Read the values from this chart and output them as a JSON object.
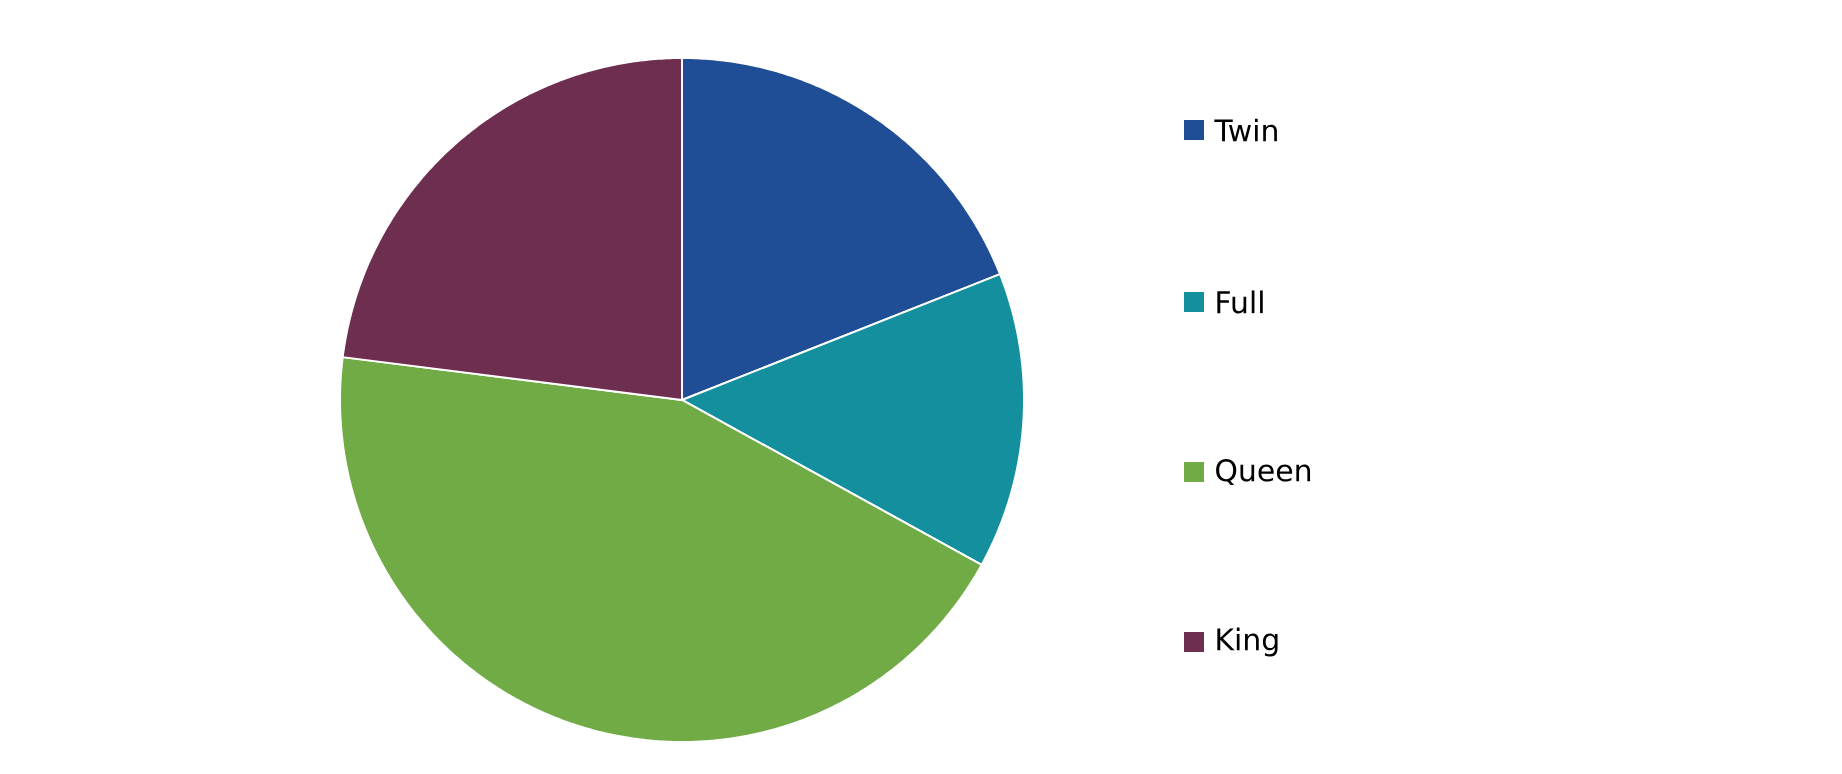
{
  "chart_data": {
    "type": "pie",
    "categories": [
      "Twin",
      "Full",
      "Queen",
      "King"
    ],
    "values": [
      19,
      14,
      44,
      23
    ],
    "colors": [
      "#1f4e96",
      "#138f9e",
      "#70ab46",
      "#6e2e50"
    ],
    "legend": "right"
  }
}
